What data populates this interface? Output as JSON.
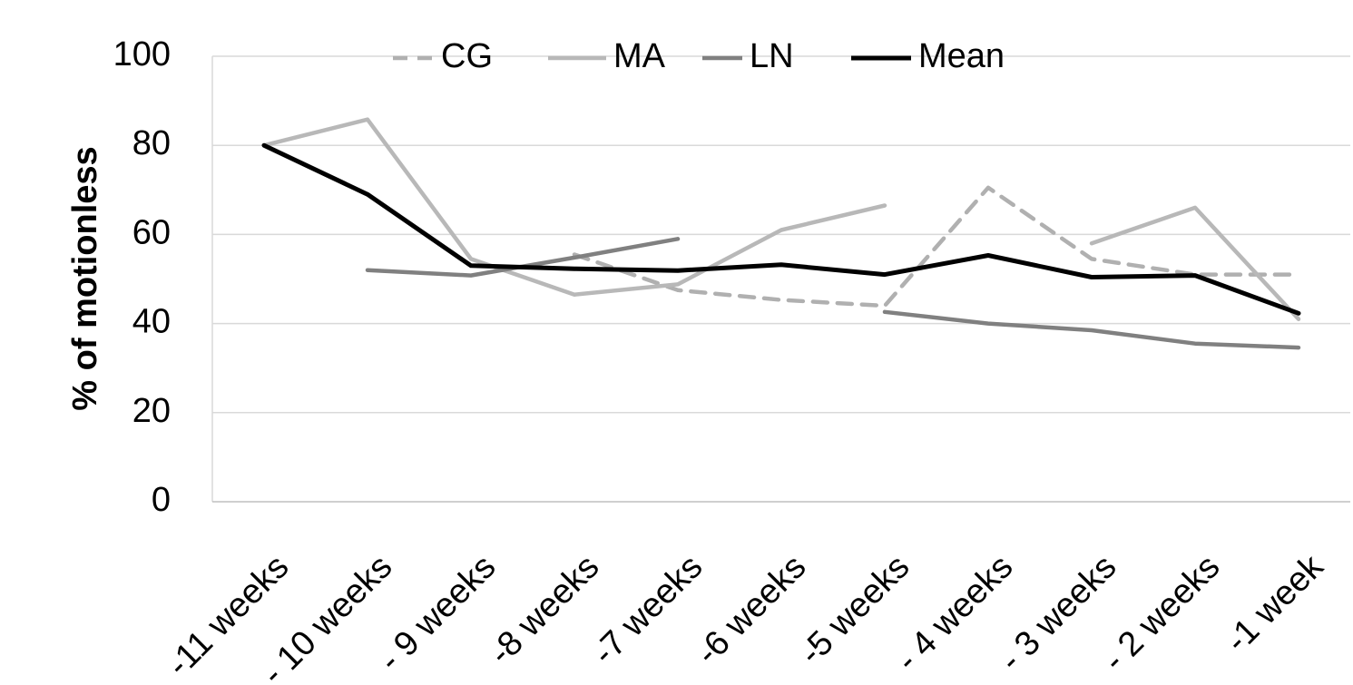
{
  "chart_data": {
    "type": "line",
    "title": "",
    "xlabel": "",
    "ylabel": "% of motionless",
    "ylim": [
      0,
      100
    ],
    "yticks": [
      "0",
      "20",
      "40",
      "60",
      "80",
      "100"
    ],
    "categories": [
      "-11 weeks",
      "- 10 weeks",
      "- 9 weeks",
      "-8 weeks",
      "-7 weeks",
      "-6 weeks",
      "-5 weeks",
      "- 4 weeks",
      "- 3 weeks",
      "- 2 weeks",
      "-1 week"
    ],
    "grid": "horizontal",
    "legend_position": "top",
    "series": [
      {
        "name": "CG",
        "color": "#b0b0b0",
        "dash": "dashed",
        "values": [
          null,
          null,
          null,
          55.5,
          47.5,
          45.3,
          44,
          70.5,
          54.5,
          51,
          51
        ]
      },
      {
        "name": "MA",
        "color": "#b8b8b8",
        "dash": "solid",
        "segments": [
          [
            80,
            85.8,
            54.5,
            46.5,
            48.8,
            61,
            66.5
          ],
          [
            null,
            null,
            null,
            null,
            null,
            null,
            null,
            null,
            58,
            66,
            41
          ]
        ],
        "values": [
          80,
          85.8,
          54.5,
          46.5,
          48.8,
          61,
          66.5,
          null,
          58,
          66,
          41
        ]
      },
      {
        "name": "LN",
        "color": "#808080",
        "dash": "solid",
        "segments": [
          [
            null,
            52,
            50.8,
            54.8,
            59
          ],
          [
            null,
            null,
            null,
            null,
            null,
            null,
            42.6,
            40,
            38.5,
            35.5,
            34.6
          ]
        ],
        "values": [
          null,
          52,
          50.8,
          54.8,
          59,
          null,
          42.6,
          40,
          38.5,
          35.5,
          34.6
        ]
      },
      {
        "name": "Mean",
        "color": "#000000",
        "dash": "solid",
        "values": [
          80,
          69,
          53,
          52.3,
          51.9,
          53.2,
          51,
          55.3,
          50.4,
          50.8,
          42.3
        ]
      }
    ]
  }
}
